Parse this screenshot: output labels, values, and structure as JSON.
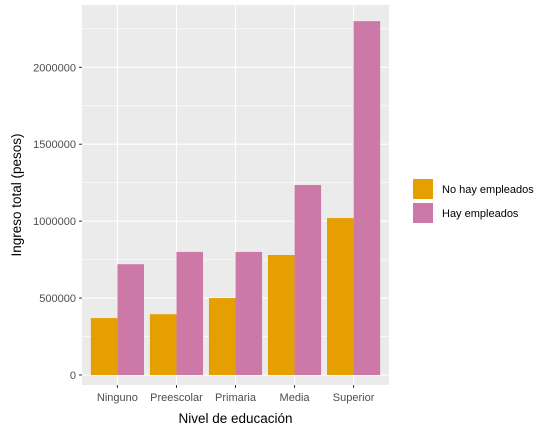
{
  "chart_data": {
    "type": "bar",
    "title": "",
    "xlabel": "Nivel de educación",
    "ylabel": "Ingreso total (pesos)",
    "categories": [
      "Ninguno",
      "Preescolar",
      "Primaria",
      "Media",
      "Superior"
    ],
    "series": [
      {
        "name": "No hay empleados",
        "color": "#E69F00",
        "values": [
          370000,
          395000,
          500000,
          780000,
          1020000
        ]
      },
      {
        "name": "Hay empleados",
        "color": "#CC79A7",
        "values": [
          720000,
          800000,
          800000,
          1235000,
          2300000
        ]
      }
    ],
    "ylim": [
      -65000,
      2405000
    ],
    "yticks": [
      0,
      500000,
      1000000,
      1500000,
      2000000
    ],
    "ytick_labels": [
      "0",
      "500000",
      "1000000",
      "1500000",
      "2000000"
    ],
    "grid": true,
    "panel_background": "#EBEBEB",
    "legend_position": "right"
  }
}
